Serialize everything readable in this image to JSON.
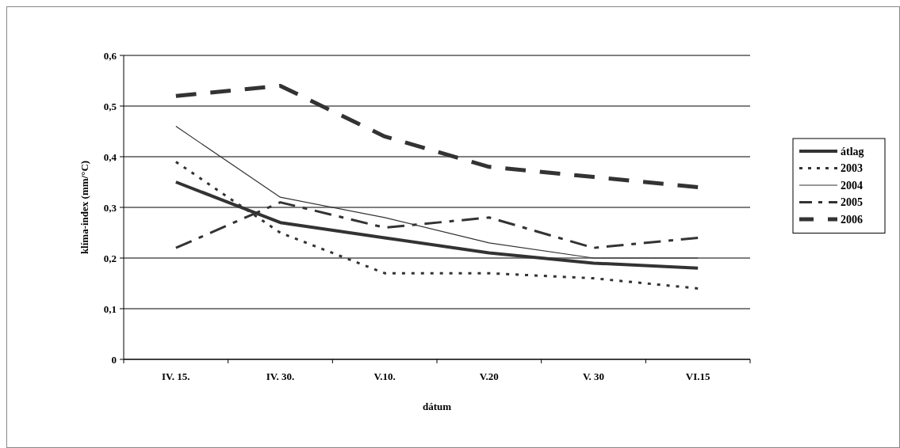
{
  "chart_data": {
    "type": "line",
    "xlabel": "dátum",
    "ylabel": "klíma-index (mm/°C)",
    "categories": [
      "IV. 15.",
      "IV. 30.",
      "V.10.",
      "V.20",
      "V. 30",
      "VI.15"
    ],
    "ylim": [
      0,
      0.6
    ],
    "yticks": [
      {
        "value": 0,
        "label": "0"
      },
      {
        "value": 0.1,
        "label": "0,1"
      },
      {
        "value": 0.2,
        "label": "0,2"
      },
      {
        "value": 0.3,
        "label": "0,3"
      },
      {
        "value": 0.4,
        "label": "0,4"
      },
      {
        "value": 0.5,
        "label": "0,5"
      },
      {
        "value": 0.6,
        "label": "0,6"
      }
    ],
    "grid": "y",
    "legend": "right",
    "marker": "none",
    "series": [
      {
        "name": "átlag",
        "color": "#333333",
        "line_style": "solid",
        "values": [
          0.35,
          0.27,
          0.24,
          0.21,
          0.19,
          0.18
        ]
      },
      {
        "name": "2003",
        "color": "#333333",
        "line_style": "dotted",
        "values": [
          0.39,
          0.25,
          0.17,
          0.17,
          0.16,
          0.14
        ]
      },
      {
        "name": "2004",
        "color": "#333333",
        "line_style": "solid",
        "values": [
          0.46,
          0.32,
          0.28,
          0.23,
          0.2,
          0.2
        ]
      },
      {
        "name": "2005",
        "color": "#333333",
        "line_style": "dashdot",
        "values": [
          0.22,
          0.31,
          0.26,
          0.28,
          0.22,
          0.24
        ]
      },
      {
        "name": "2006",
        "color": "#333333",
        "line_style": "dashed",
        "values": [
          0.52,
          0.54,
          0.44,
          0.38,
          0.36,
          0.34
        ]
      }
    ]
  }
}
